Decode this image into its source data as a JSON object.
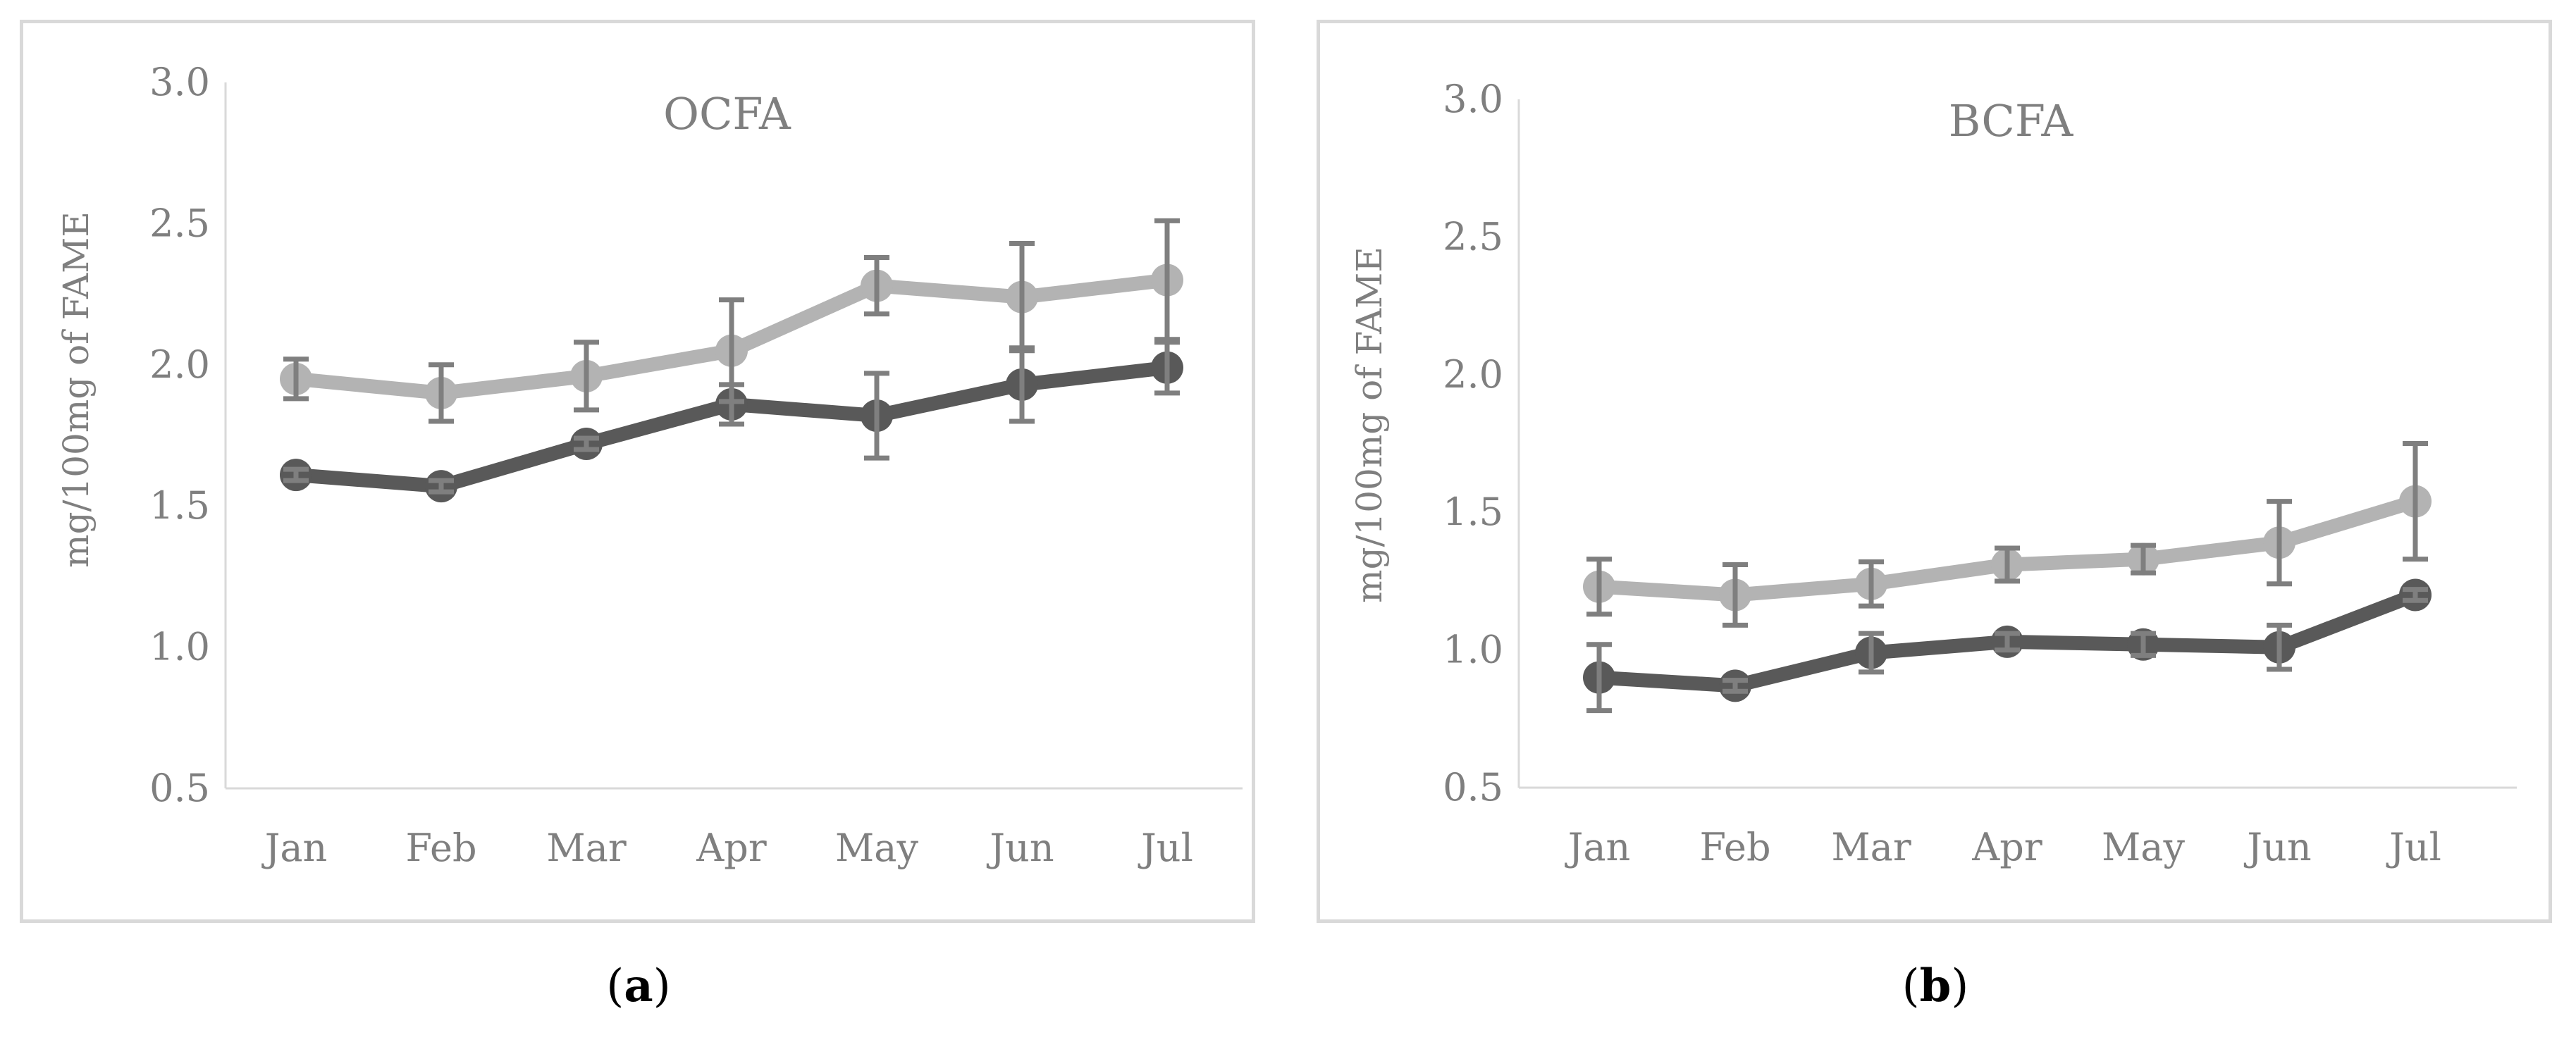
{
  "chart_data": [
    {
      "type": "line",
      "title": "OCFA",
      "ylabel": "mg/100mg of FAME",
      "xlabel": "",
      "categories": [
        "Jan",
        "Feb",
        "Mar",
        "Apr",
        "May",
        "Jun",
        "Jul"
      ],
      "ylim": [
        0.5,
        3.0
      ],
      "yticks": [
        "0.5",
        "1.0",
        "1.5",
        "2.0",
        "2.5",
        "3.0"
      ],
      "grid": false,
      "series": [
        {
          "color": "#b3b3b3",
          "values": [
            1.95,
            1.9,
            1.96,
            2.05,
            2.28,
            2.24,
            2.3
          ],
          "err": [
            0.07,
            0.1,
            0.12,
            0.18,
            0.1,
            0.19,
            0.21
          ]
        },
        {
          "color": "#595959",
          "values": [
            1.61,
            1.57,
            1.72,
            1.86,
            1.82,
            1.93,
            1.99
          ],
          "err": [
            0.02,
            0.02,
            0.02,
            0.07,
            0.15,
            0.13,
            0.09
          ]
        }
      ],
      "caption": "a"
    },
    {
      "type": "line",
      "title": "BCFA",
      "ylabel": "mg/100mg of FAME",
      "xlabel": "",
      "categories": [
        "Jan",
        "Feb",
        "Mar",
        "Apr",
        "May",
        "Jun",
        "Jul"
      ],
      "ylim": [
        0.5,
        3.0
      ],
      "yticks": [
        "0.5",
        "1.0",
        "1.5",
        "2.0",
        "2.5",
        "3.0"
      ],
      "grid": false,
      "series": [
        {
          "color": "#b3b3b3",
          "values": [
            1.23,
            1.2,
            1.24,
            1.31,
            1.33,
            1.39,
            1.54
          ],
          "err": [
            0.1,
            0.11,
            0.08,
            0.06,
            0.05,
            0.15,
            0.21
          ]
        },
        {
          "color": "#595959",
          "values": [
            0.9,
            0.87,
            0.99,
            1.03,
            1.02,
            1.01,
            1.2
          ],
          "err": [
            0.12,
            0.02,
            0.07,
            0.03,
            0.04,
            0.08,
            0.02
          ]
        }
      ],
      "caption": "b"
    }
  ]
}
